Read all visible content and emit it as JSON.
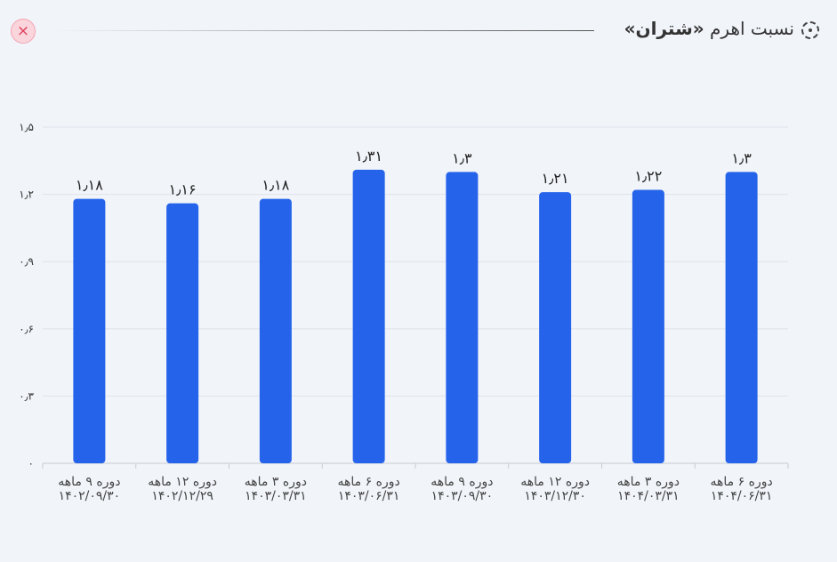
{
  "header": {
    "title_prefix": "نسبت اهرم",
    "title_company": "«شتران»",
    "close_label": "×",
    "icon": "target-icon"
  },
  "colors": {
    "bar": "#2563eb",
    "grid": "#dfe3ea",
    "background": "#f1f4f9"
  },
  "chart_data": {
    "type": "bar",
    "title": "نسبت اهرم «شتران»",
    "xlabel": "",
    "ylabel": "",
    "ylim": [
      0,
      1.5
    ],
    "grid": true,
    "yticks": [
      0,
      0.3,
      0.6,
      0.9,
      1.2,
      1.5
    ],
    "ytick_labels": [
      "۰",
      "۰٫۳",
      "۰٫۶",
      "۰٫۹",
      "۱٫۲",
      "۱٫۵"
    ],
    "categories": [
      [
        "دوره ۹ ماهه",
        "۱۴۰۲/۰۹/۳۰"
      ],
      [
        "دوره ۱۲ ماهه",
        "۱۴۰۲/۱۲/۲۹"
      ],
      [
        "دوره ۳ ماهه",
        "۱۴۰۳/۰۳/۳۱"
      ],
      [
        "دوره ۶ ماهه",
        "۱۴۰۳/۰۶/۳۱"
      ],
      [
        "دوره ۹ ماهه",
        "۱۴۰۳/۰۹/۳۰"
      ],
      [
        "دوره ۱۲ ماهه",
        "۱۴۰۳/۱۲/۳۰"
      ],
      [
        "دوره ۳ ماهه",
        "۱۴۰۴/۰۳/۳۱"
      ],
      [
        "دوره ۶ ماهه",
        "۱۴۰۴/۰۶/۳۱"
      ]
    ],
    "values": [
      1.18,
      1.16,
      1.18,
      1.31,
      1.3,
      1.21,
      1.22,
      1.3
    ],
    "value_labels": [
      "۱٫۱۸",
      "۱٫۱۶",
      "۱٫۱۸",
      "۱٫۳۱",
      "۱٫۳",
      "۱٫۲۱",
      "۱٫۲۲",
      "۱٫۳"
    ]
  }
}
